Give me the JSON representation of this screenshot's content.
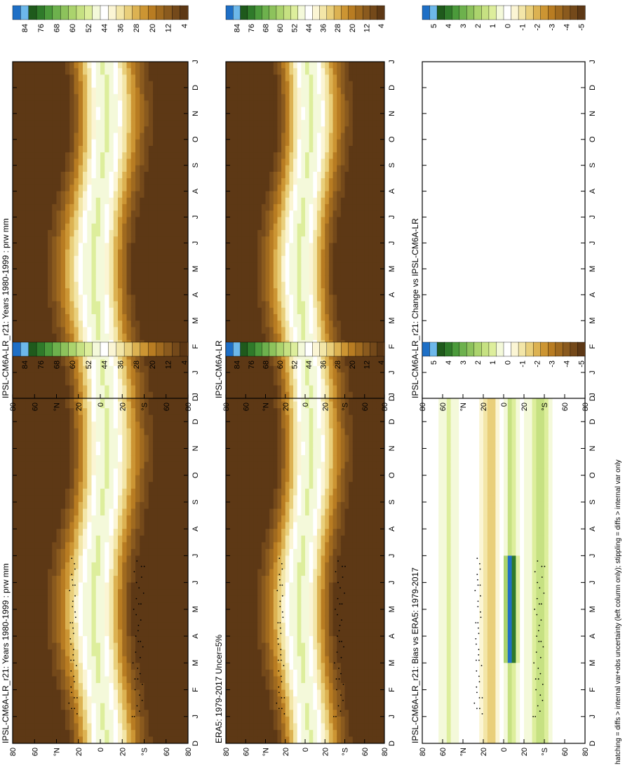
{
  "figure": {
    "footnote": "hatching = diffs > internal var+obs uncertainty (left column only); stippling = diffs > internal var only"
  },
  "colorbars": {
    "absolute": {
      "labels": [
        "84",
        "76",
        "68",
        "60",
        "52",
        "44",
        "36",
        "28",
        "20",
        "12",
        "4"
      ],
      "colors": [
        "#1e6fc6",
        "#6db8ea",
        "#1f5a1c",
        "#2f7a2a",
        "#4b9a3b",
        "#6db14d",
        "#8dc25c",
        "#abd36d",
        "#c6e182",
        "#ddee9c",
        "#f4f9da",
        "#ffffff",
        "#fbf5d4",
        "#f3e6a8",
        "#e9cf7b",
        "#dcb252",
        "#cc9533",
        "#b87c22",
        "#a06a1f",
        "#8a5a1e",
        "#74491a",
        "#5d3815"
      ]
    },
    "difference": {
      "labels": [
        "5",
        "4",
        "3",
        "2",
        "1",
        "0",
        "-1",
        "-2",
        "-3",
        "-4",
        "-5"
      ],
      "colors": [
        "#1e6fc6",
        "#6db8ea",
        "#1f5a1c",
        "#2f7a2a",
        "#4b9a3b",
        "#6db14d",
        "#8dc25c",
        "#abd36d",
        "#c6e182",
        "#ddee9c",
        "#f4f9da",
        "#ffffff",
        "#fbf5d4",
        "#f3e6a8",
        "#e9cf7b",
        "#dcb252",
        "#cc9533",
        "#b87c22",
        "#a06a1f",
        "#8a5a1e",
        "#74491a",
        "#5d3815"
      ]
    }
  },
  "chart_data": [
    {
      "type": "heatmap",
      "title": "IPSL-CM6A-LR_r21: Years 1980-1999 : prw mm",
      "months": [
        "D",
        "J",
        "F",
        "M",
        "A",
        "M",
        "J",
        "J",
        "A",
        "S",
        "O",
        "N",
        "D",
        "J"
      ],
      "lat_ticks": [
        "80",
        "60",
        "°N",
        "20",
        "0",
        "20",
        "°S",
        "60",
        "80"
      ],
      "kind": "absolute",
      "colorbar": "absolute",
      "stippling": true
    },
    {
      "type": "heatmap",
      "title": "ERA5: 1979-2017 Uncer=5%",
      "months": [
        "D",
        "J",
        "F",
        "M",
        "A",
        "M",
        "J",
        "J",
        "A",
        "S",
        "O",
        "N",
        "D",
        "J"
      ],
      "lat_ticks": [
        "80",
        "60",
        "°N",
        "20",
        "0",
        "20",
        "°S",
        "60",
        "80"
      ],
      "kind": "absolute",
      "colorbar": "absolute",
      "stippling": true
    },
    {
      "type": "heatmap",
      "title": "IPSL-CM6A-LR_r21: Bias vs ERA5: 1979-2017",
      "months": [
        "D",
        "J",
        "F",
        "M",
        "A",
        "M",
        "J",
        "J",
        "A",
        "S",
        "O",
        "N",
        "D",
        "J"
      ],
      "lat_ticks": [
        "80",
        "60",
        "°N",
        "20",
        "0",
        "20",
        "°S",
        "60",
        "80"
      ],
      "kind": "bias",
      "colorbar": "difference",
      "stippling": true
    },
    {
      "type": "heatmap",
      "title": "IPSL-CM6A-LR_r21: Years 1980-1999 : prw mm",
      "months": [
        "D",
        "J",
        "F",
        "M",
        "A",
        "M",
        "J",
        "J",
        "A",
        "S",
        "O",
        "N",
        "D",
        "J"
      ],
      "lat_ticks": [
        "80",
        "60",
        "°N",
        "20",
        "0",
        "20",
        "°S",
        "60",
        "80"
      ],
      "kind": "absolute",
      "colorbar": "absolute",
      "stippling": false
    },
    {
      "type": "heatmap",
      "title": "IPSL-CM6A-LR",
      "months": [
        "D",
        "J",
        "F",
        "M",
        "A",
        "M",
        "J",
        "J",
        "A",
        "S",
        "O",
        "N",
        "D",
        "J"
      ],
      "lat_ticks": [
        "80",
        "60",
        "°N",
        "20",
        "0",
        "20",
        "°S",
        "60",
        "80"
      ],
      "kind": "absolute",
      "colorbar": "absolute",
      "stippling": false
    },
    {
      "type": "heatmap",
      "title": "IPSL-CM6A-LR_r21: Change vs IPSL-CM6A-LR",
      "months": [
        "D",
        "J",
        "F",
        "M",
        "A",
        "M",
        "J",
        "J",
        "A",
        "S",
        "O",
        "N",
        "D",
        "J"
      ],
      "lat_ticks": [
        "80",
        "60",
        "°N",
        "20",
        "0",
        "20",
        "°S",
        "60",
        "80"
      ],
      "kind": "change",
      "colorbar": "difference",
      "stippling": false
    }
  ]
}
